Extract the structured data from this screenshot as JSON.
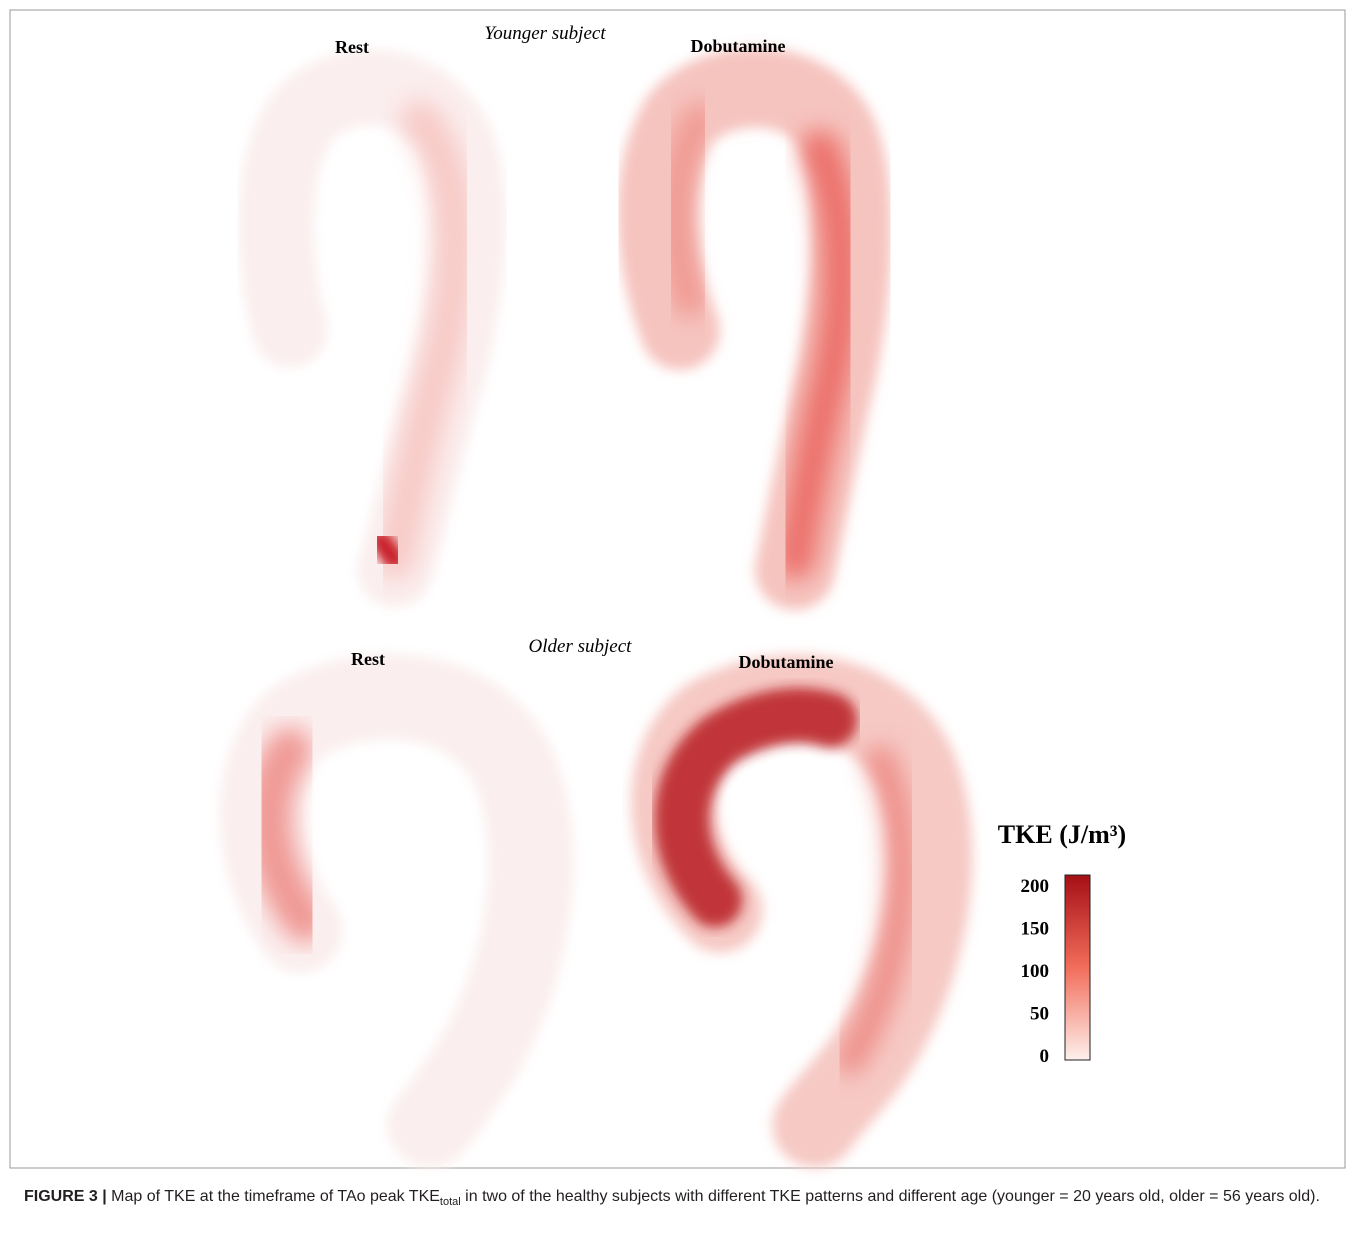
{
  "figure": {
    "panels": [
      {
        "label": "Rest"
      },
      {
        "label": "Dobutamine"
      },
      {
        "label": "Rest"
      },
      {
        "label": "Dobutamine"
      }
    ],
    "row_titles": [
      "Younger subject",
      "Older subject"
    ],
    "colorbar": {
      "title": "TKE (J/m³)",
      "ticks": [
        0,
        50,
        100,
        150,
        200
      ]
    },
    "caption": {
      "label": "FIGURE 3 |",
      "text_before": "Map of TKE at the timeframe of TAo peak TKE",
      "subscript": "total",
      "text_after": " in two of the healthy subjects with different TKE patterns and different age (younger = 20 years old, older = 56 years old)."
    }
  }
}
